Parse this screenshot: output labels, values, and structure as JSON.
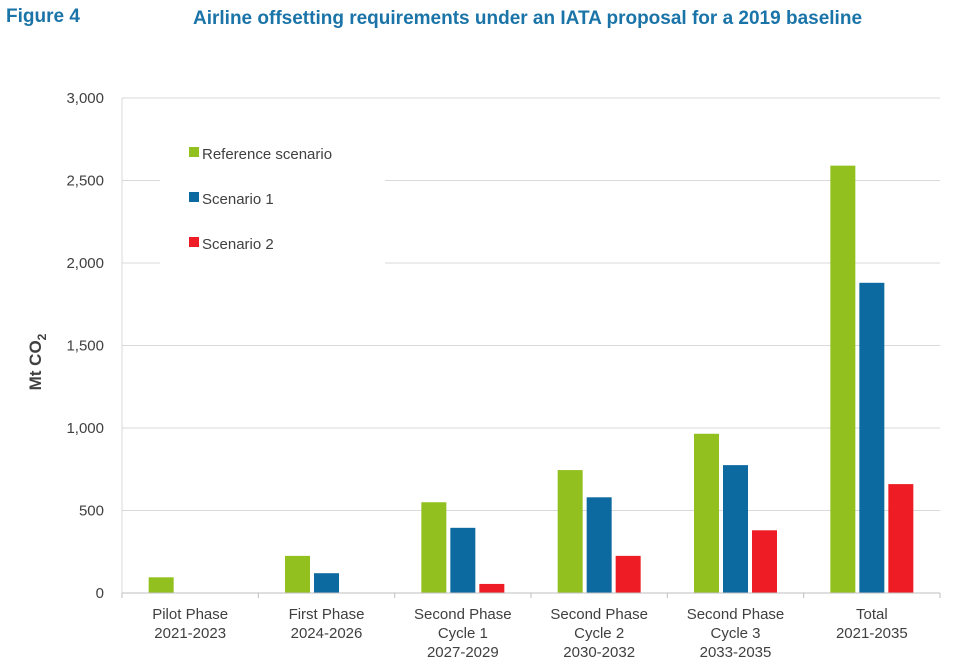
{
  "figure": {
    "label": "Figure 4",
    "title": "Airline offsetting requirements under an IATA proposal for a 2019 baseline"
  },
  "chart_data": {
    "type": "bar",
    "title": "Airline offsetting requirements under an IATA proposal for a 2019 baseline",
    "ylabel": "Mt CO",
    "ylabel_subscript": "2",
    "xlabel": "",
    "ylim": [
      0,
      3000
    ],
    "yticks": [
      0,
      500,
      1000,
      1500,
      2000,
      2500,
      3000
    ],
    "ytick_labels": [
      "0",
      "500",
      "1,000",
      "1,500",
      "2,000",
      "2,500",
      "3,000"
    ],
    "grid": true,
    "legend_position": "top-left",
    "categories": [
      [
        "Pilot Phase",
        "2021-2023"
      ],
      [
        "First Phase",
        "2024-2026"
      ],
      [
        "Second Phase",
        "Cycle 1",
        "2027-2029"
      ],
      [
        "Second Phase",
        "Cycle 2",
        "2030-2032"
      ],
      [
        "Second Phase",
        "Cycle 3",
        "2033-2035"
      ],
      [
        "Total",
        "2021-2035"
      ]
    ],
    "series": [
      {
        "name": "Reference scenario",
        "color": "#92c01f",
        "values": [
          95,
          225,
          550,
          745,
          965,
          2590
        ]
      },
      {
        "name": "Scenario 1",
        "color": "#0d6aa0",
        "values": [
          0,
          120,
          395,
          580,
          775,
          1880
        ]
      },
      {
        "name": "Scenario 2",
        "color": "#ee1c25",
        "values": [
          0,
          0,
          55,
          225,
          380,
          660
        ]
      }
    ]
  }
}
